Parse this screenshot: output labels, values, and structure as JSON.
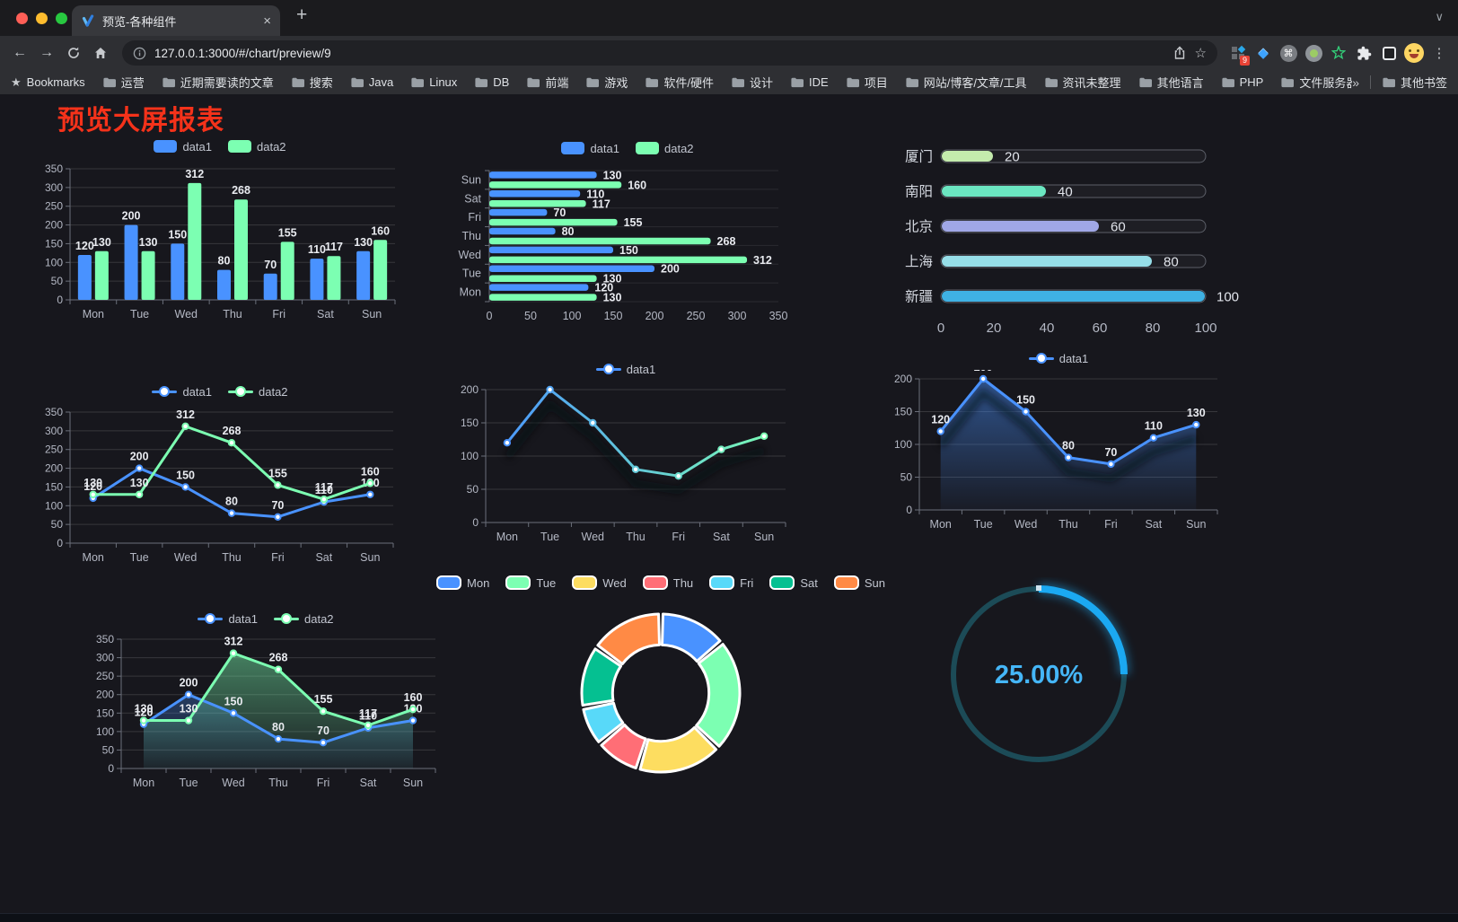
{
  "browser": {
    "tab_title": "预览-各种组件",
    "url": "127.0.0.1:3000/#/chart/preview/9",
    "bookmarks_label": "Bookmarks",
    "bookmark_folders": [
      "运营",
      "近期需要读的文章",
      "搜索",
      "Java",
      "Linux",
      "DB",
      "前端",
      "游戏",
      "软件/硬件",
      "设计",
      "IDE",
      "项目",
      "网站/博客/文章/工具",
      "资讯未整理",
      "其他语言",
      "PHP",
      "文件服务器"
    ],
    "bookmarks_overflow": "»",
    "other_bookmarks_label": "其他书签",
    "extension_badge": "9"
  },
  "icons": {
    "close_tab": "×",
    "new_tab": "+",
    "tab_search_chevron": "∨",
    "back": "←",
    "forward": "→",
    "menu": "⋮",
    "command": "⌘",
    "star_outline": "☆",
    "bookmark_star": "★"
  },
  "page": {
    "title": "预览大屏报表",
    "title_color": "#f5321a"
  },
  "chart_data": [
    {
      "id": "grouped-bar",
      "type": "bar",
      "categories": [
        "Mon",
        "Tue",
        "Wed",
        "Thu",
        "Fri",
        "Sat",
        "Sun"
      ],
      "series": [
        {
          "name": "data1",
          "color": "#4992ff",
          "values": [
            120,
            200,
            150,
            80,
            70,
            110,
            130
          ]
        },
        {
          "name": "data2",
          "color": "#7cffb2",
          "values": [
            130,
            130,
            312,
            268,
            155,
            117,
            160
          ]
        }
      ],
      "ylim": [
        0,
        350
      ],
      "yticks": [
        0,
        50,
        100,
        150,
        200,
        250,
        300,
        350
      ],
      "legend_position": "top",
      "value_labels": true,
      "grid": true
    },
    {
      "id": "grouped-bar-horizontal",
      "type": "bar-horizontal",
      "categories_top_to_bottom": [
        "Sun",
        "Sat",
        "Fri",
        "Thu",
        "Wed",
        "Tue",
        "Mon"
      ],
      "series": [
        {
          "name": "data1",
          "color": "#4992ff",
          "values": [
            130,
            110,
            70,
            80,
            150,
            200,
            120
          ]
        },
        {
          "name": "data2",
          "color": "#7cffb2",
          "values": [
            160,
            117,
            155,
            268,
            312,
            130,
            130
          ]
        }
      ],
      "xlim": [
        0,
        350
      ],
      "xticks": [
        0,
        50,
        100,
        150,
        200,
        250,
        300,
        350
      ],
      "legend_position": "top",
      "value_labels": true
    },
    {
      "id": "progress-bars",
      "type": "progress",
      "rows": [
        {
          "label": "厦门",
          "value": 20,
          "color": "#c4ebad"
        },
        {
          "label": "南阳",
          "value": 40,
          "color": "#6be6c1"
        },
        {
          "label": "北京",
          "value": 60,
          "color": "#a0a7e6"
        },
        {
          "label": "上海",
          "value": 80,
          "color": "#96dee8"
        },
        {
          "label": "新疆",
          "value": 100,
          "color": "#3fb1e3"
        }
      ],
      "xlim": [
        0,
        100
      ],
      "xticks": [
        0,
        20,
        40,
        60,
        80,
        100
      ]
    },
    {
      "id": "two-line",
      "type": "line",
      "categories": [
        "Mon",
        "Tue",
        "Wed",
        "Thu",
        "Fri",
        "Sat",
        "Sun"
      ],
      "series": [
        {
          "name": "data1",
          "color": "#4992ff",
          "values": [
            120,
            200,
            150,
            80,
            70,
            110,
            130
          ]
        },
        {
          "name": "data2",
          "color": "#7cffb2",
          "values": [
            130,
            130,
            312,
            268,
            155,
            117,
            160
          ]
        }
      ],
      "ylim": [
        0,
        350
      ],
      "yticks": [
        0,
        50,
        100,
        150,
        200,
        250,
        300,
        350
      ],
      "legend_position": "top",
      "value_labels": true
    },
    {
      "id": "gradient-line",
      "type": "line",
      "categories": [
        "Mon",
        "Tue",
        "Wed",
        "Thu",
        "Fri",
        "Sat",
        "Sun"
      ],
      "series": [
        {
          "name": "data1",
          "gradient": [
            "#4992ff",
            "#7cffb2"
          ],
          "values": [
            120,
            200,
            150,
            80,
            70,
            110,
            130
          ],
          "shadow": true
        }
      ],
      "ylim": [
        0,
        200
      ],
      "yticks": [
        0,
        50,
        100,
        150,
        200
      ],
      "legend_position": "top",
      "value_labels": false
    },
    {
      "id": "area-line",
      "type": "line",
      "categories": [
        "Mon",
        "Tue",
        "Wed",
        "Thu",
        "Fri",
        "Sat",
        "Sun"
      ],
      "series": [
        {
          "name": "data1",
          "color": "#4992ff",
          "values": [
            120,
            200,
            150,
            80,
            70,
            110,
            130
          ],
          "area": true,
          "shadow": true
        }
      ],
      "ylim": [
        0,
        200
      ],
      "yticks": [
        0,
        50,
        100,
        150,
        200
      ],
      "legend_position": "top",
      "value_labels": true
    },
    {
      "id": "two-area-line",
      "type": "line",
      "categories": [
        "Mon",
        "Tue",
        "Wed",
        "Thu",
        "Fri",
        "Sat",
        "Sun"
      ],
      "series": [
        {
          "name": "data1",
          "color": "#4992ff",
          "values": [
            120,
            200,
            150,
            80,
            70,
            110,
            130
          ],
          "area": true
        },
        {
          "name": "data2",
          "color": "#7cffb2",
          "values": [
            130,
            130,
            312,
            268,
            155,
            117,
            160
          ],
          "area": true
        }
      ],
      "ylim": [
        0,
        350
      ],
      "yticks": [
        0,
        50,
        100,
        150,
        200,
        250,
        300,
        350
      ],
      "legend_position": "top",
      "value_labels": true
    },
    {
      "id": "donut-pie",
      "type": "pie",
      "legend_position": "top",
      "inner_radius_ratio": 0.61,
      "slices": [
        {
          "label": "Mon",
          "value": 120,
          "color": "#4992ff"
        },
        {
          "label": "Tue",
          "value": 200,
          "color": "#7cffb2"
        },
        {
          "label": "Wed",
          "value": 150,
          "color": "#fddd60"
        },
        {
          "label": "Thu",
          "value": 80,
          "color": "#ff6e76"
        },
        {
          "label": "Fri",
          "value": 70,
          "color": "#58d9f9"
        },
        {
          "label": "Sat",
          "value": 110,
          "color": "#05c091"
        },
        {
          "label": "Sun",
          "value": 130,
          "color": "#ff8a45"
        }
      ]
    },
    {
      "id": "gauge",
      "type": "gauge",
      "value": 25,
      "max": 100,
      "label": "25.00%",
      "color": "#1ba9f2",
      "track_color": "#1c4b57",
      "text_color": "#45b6f7"
    }
  ]
}
